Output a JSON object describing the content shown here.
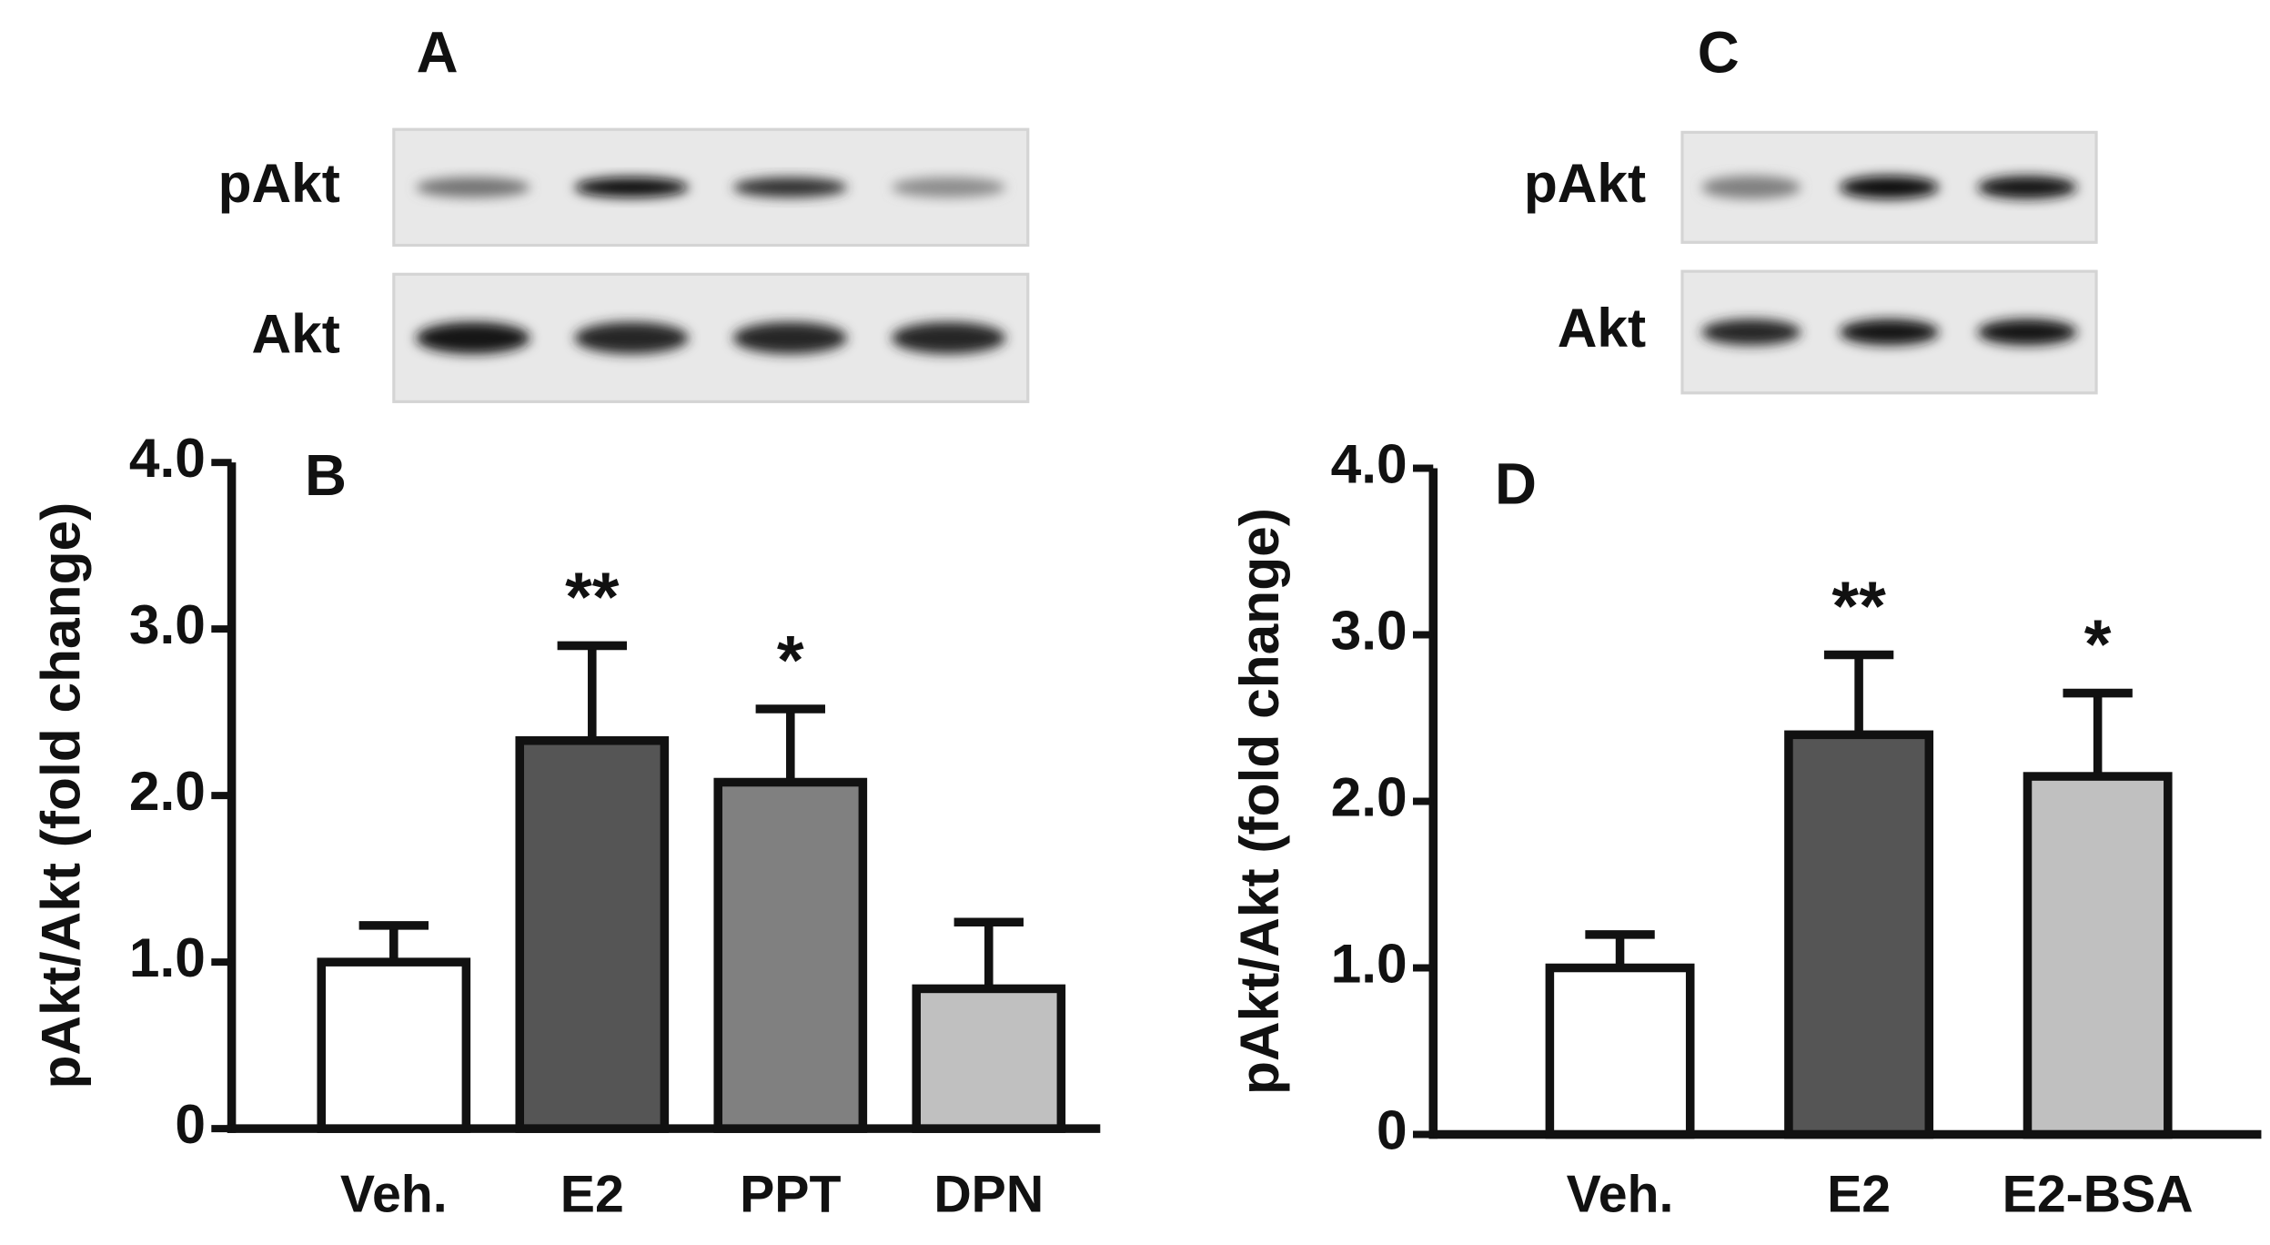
{
  "chart_data": [
    {
      "type": "bar",
      "panel": "B",
      "ylabel": "pAkt/Akt (fold change)",
      "categories": [
        "Veh.",
        "E2",
        "PPT",
        "DPN"
      ],
      "values": [
        1.0,
        2.33,
        2.08,
        0.84
      ],
      "errors": [
        0.22,
        0.57,
        0.44,
        0.4
      ],
      "annotations": [
        null,
        "**",
        "*",
        null
      ],
      "colors": [
        "#ffffff",
        "#555555",
        "#808080",
        "#c0c0c0"
      ],
      "ylim": [
        0,
        4
      ],
      "yticks": [
        0,
        {
          "value": 1,
          "label": "1.0"
        },
        {
          "value": 2,
          "label": "2.0"
        },
        {
          "value": 3,
          "label": "3.0"
        },
        {
          "value": 4,
          "label": "4.0"
        }
      ]
    },
    {
      "type": "bar",
      "panel": "D",
      "ylabel": "pAkt/Akt (fold change)",
      "categories": [
        "Veh.",
        "E2",
        "E2-BSA"
      ],
      "values": [
        1.0,
        2.4,
        2.15
      ],
      "errors": [
        0.2,
        0.48,
        0.5
      ],
      "annotations": [
        null,
        "**",
        "*"
      ],
      "colors": [
        "#ffffff",
        "#555555",
        "#c0c0c0"
      ],
      "ylim": [
        0,
        4
      ],
      "yticks": [
        0,
        {
          "value": 1,
          "label": "1.0"
        },
        {
          "value": 2,
          "label": "2.0"
        },
        {
          "value": 3,
          "label": "3.0"
        },
        {
          "value": 4,
          "label": "4.0"
        }
      ]
    }
  ],
  "blots": [
    {
      "panel": "A",
      "rows": [
        "pAkt",
        "Akt"
      ]
    },
    {
      "panel": "C",
      "rows": [
        "pAkt",
        "Akt"
      ]
    }
  ]
}
